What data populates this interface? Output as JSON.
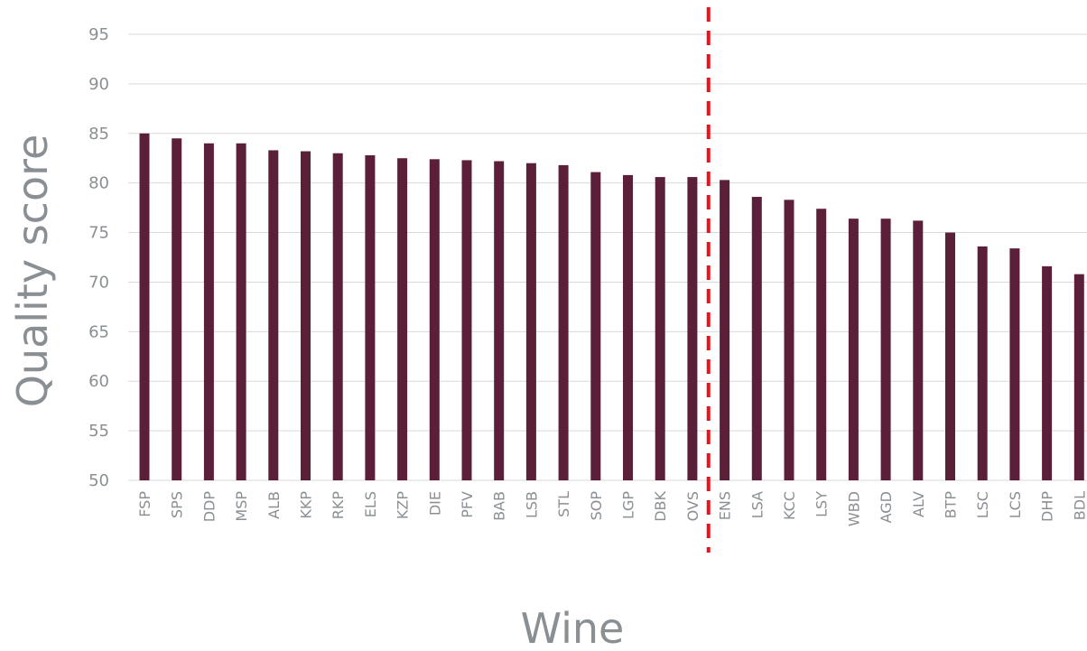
{
  "chart_data": {
    "type": "bar",
    "title": "",
    "xlabel": "Wine",
    "ylabel": "Quality score",
    "ylim": [
      50,
      95
    ],
    "yticks": [
      50,
      55,
      60,
      65,
      70,
      75,
      80,
      85,
      90,
      95
    ],
    "grid": true,
    "legend": "none",
    "categories": [
      "FSP",
      "SPS",
      "DDP",
      "MSP",
      "ALB",
      "KKP",
      "RKP",
      "ELS",
      "KZP",
      "DIE",
      "PFV",
      "BAB",
      "LSB",
      "STL",
      "SOP",
      "LGP",
      "DBK",
      "OVS",
      "ENS",
      "LSA",
      "KCC",
      "LSY",
      "WBD",
      "AGD",
      "ALV",
      "BTP",
      "LSC",
      "LCS",
      "DHP",
      "BDL"
    ],
    "values": [
      85.0,
      84.5,
      84.0,
      84.0,
      83.3,
      83.2,
      83.0,
      82.8,
      82.5,
      82.4,
      82.3,
      82.2,
      82.0,
      81.8,
      81.1,
      80.8,
      80.6,
      80.6,
      80.3,
      78.6,
      78.3,
      77.4,
      76.4,
      76.4,
      76.2,
      75.0,
      73.6,
      73.4,
      71.6,
      70.8
    ],
    "reference_line": {
      "between_categories": [
        "OVS",
        "ENS"
      ],
      "style": "dashed",
      "color": "#e8141b"
    },
    "bar_color": "#5c1f3a"
  }
}
